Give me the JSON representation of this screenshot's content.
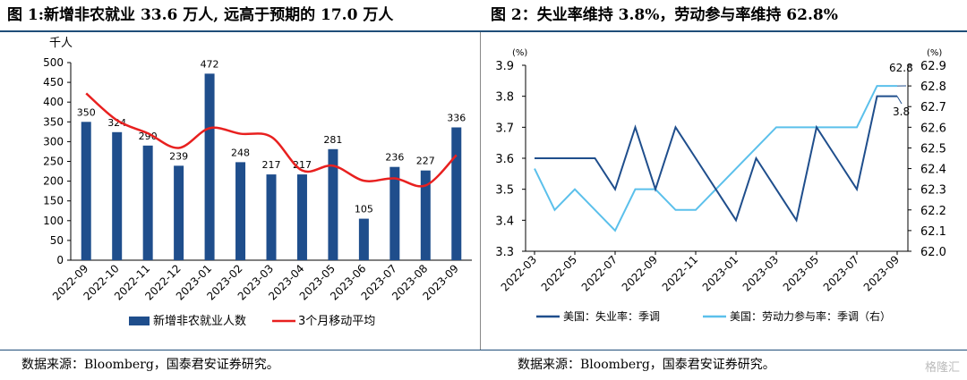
{
  "title1": "图 1:新增非农就业 33.6 万人, 远高于预期的 17.0 万人",
  "title2": "图 2：失业率维持 3.8%，劳动参与率维持 62.8%",
  "source1": "数据来源：Bloomberg，国泰君安证券研究。",
  "source2": "数据来源：Bloomberg，国泰君安证券研究。",
  "watermark": "格隆汇",
  "chart_data": [
    {
      "type": "bar",
      "ylabel": "千人",
      "ylim": [
        0,
        500
      ],
      "yticks": [
        0,
        50,
        100,
        150,
        200,
        250,
        300,
        350,
        400,
        450,
        500
      ],
      "categories": [
        "2022-09",
        "2022-10",
        "2022-11",
        "2022-12",
        "2023-01",
        "2023-02",
        "2023-03",
        "2023-04",
        "2023-05",
        "2023-06",
        "2023-07",
        "2023-08",
        "2023-09"
      ],
      "series": [
        {
          "name": "新增非农就业人数",
          "type": "bar",
          "color": "#1f4e8c",
          "values": [
            350,
            324,
            290,
            239,
            472,
            248,
            217,
            217,
            281,
            105,
            236,
            227,
            336
          ]
        },
        {
          "name": "3个月移动平均",
          "type": "line",
          "color": "#e8201f",
          "values": [
            422,
            354,
            321,
            284,
            334,
            320,
            312,
            227,
            239,
            201,
            207,
            189,
            266
          ]
        }
      ],
      "legend": "bottom",
      "grid": false
    },
    {
      "type": "line",
      "ylabel_left": "(%)",
      "ylabel_right": "(%)",
      "ylim_left": [
        3.3,
        3.9
      ],
      "ylim_right": [
        62.0,
        62.9
      ],
      "yticks_left": [
        3.3,
        3.4,
        3.5,
        3.6,
        3.7,
        3.8,
        3.9
      ],
      "yticks_right": [
        62.0,
        62.1,
        62.2,
        62.3,
        62.4,
        62.5,
        62.6,
        62.7,
        62.8,
        62.9
      ],
      "x": [
        "2022-03",
        "2022-04",
        "2022-05",
        "2022-06",
        "2022-07",
        "2022-08",
        "2022-09",
        "2022-10",
        "2022-11",
        "2022-12",
        "2023-01",
        "2023-02",
        "2023-03",
        "2023-04",
        "2023-05",
        "2023-06",
        "2023-07",
        "2023-08",
        "2023-09"
      ],
      "xticks": [
        "2022-03",
        "2022-05",
        "2022-07",
        "2022-09",
        "2022-11",
        "2023-01",
        "2023-03",
        "2023-05",
        "2023-07",
        "2023-09"
      ],
      "series": [
        {
          "name": "美国：失业率：季调",
          "axis": "left",
          "color": "#1f4e8c",
          "values": [
            3.6,
            3.6,
            3.6,
            3.6,
            3.5,
            3.7,
            3.5,
            3.7,
            3.6,
            3.5,
            3.4,
            3.6,
            3.5,
            3.4,
            3.7,
            3.6,
            3.5,
            3.8,
            3.8
          ]
        },
        {
          "name": "美国：劳动力参与率：季调（右）",
          "axis": "right",
          "color": "#5bc0eb",
          "values": [
            62.4,
            62.2,
            62.3,
            62.2,
            62.1,
            62.3,
            62.3,
            62.2,
            62.2,
            62.3,
            62.4,
            62.5,
            62.6,
            62.6,
            62.6,
            62.6,
            62.6,
            62.8,
            62.8
          ]
        }
      ],
      "annotations": [
        {
          "text": "62.8"
        },
        {
          "text": "3.8"
        }
      ],
      "legend": "bottom",
      "grid": false
    }
  ]
}
